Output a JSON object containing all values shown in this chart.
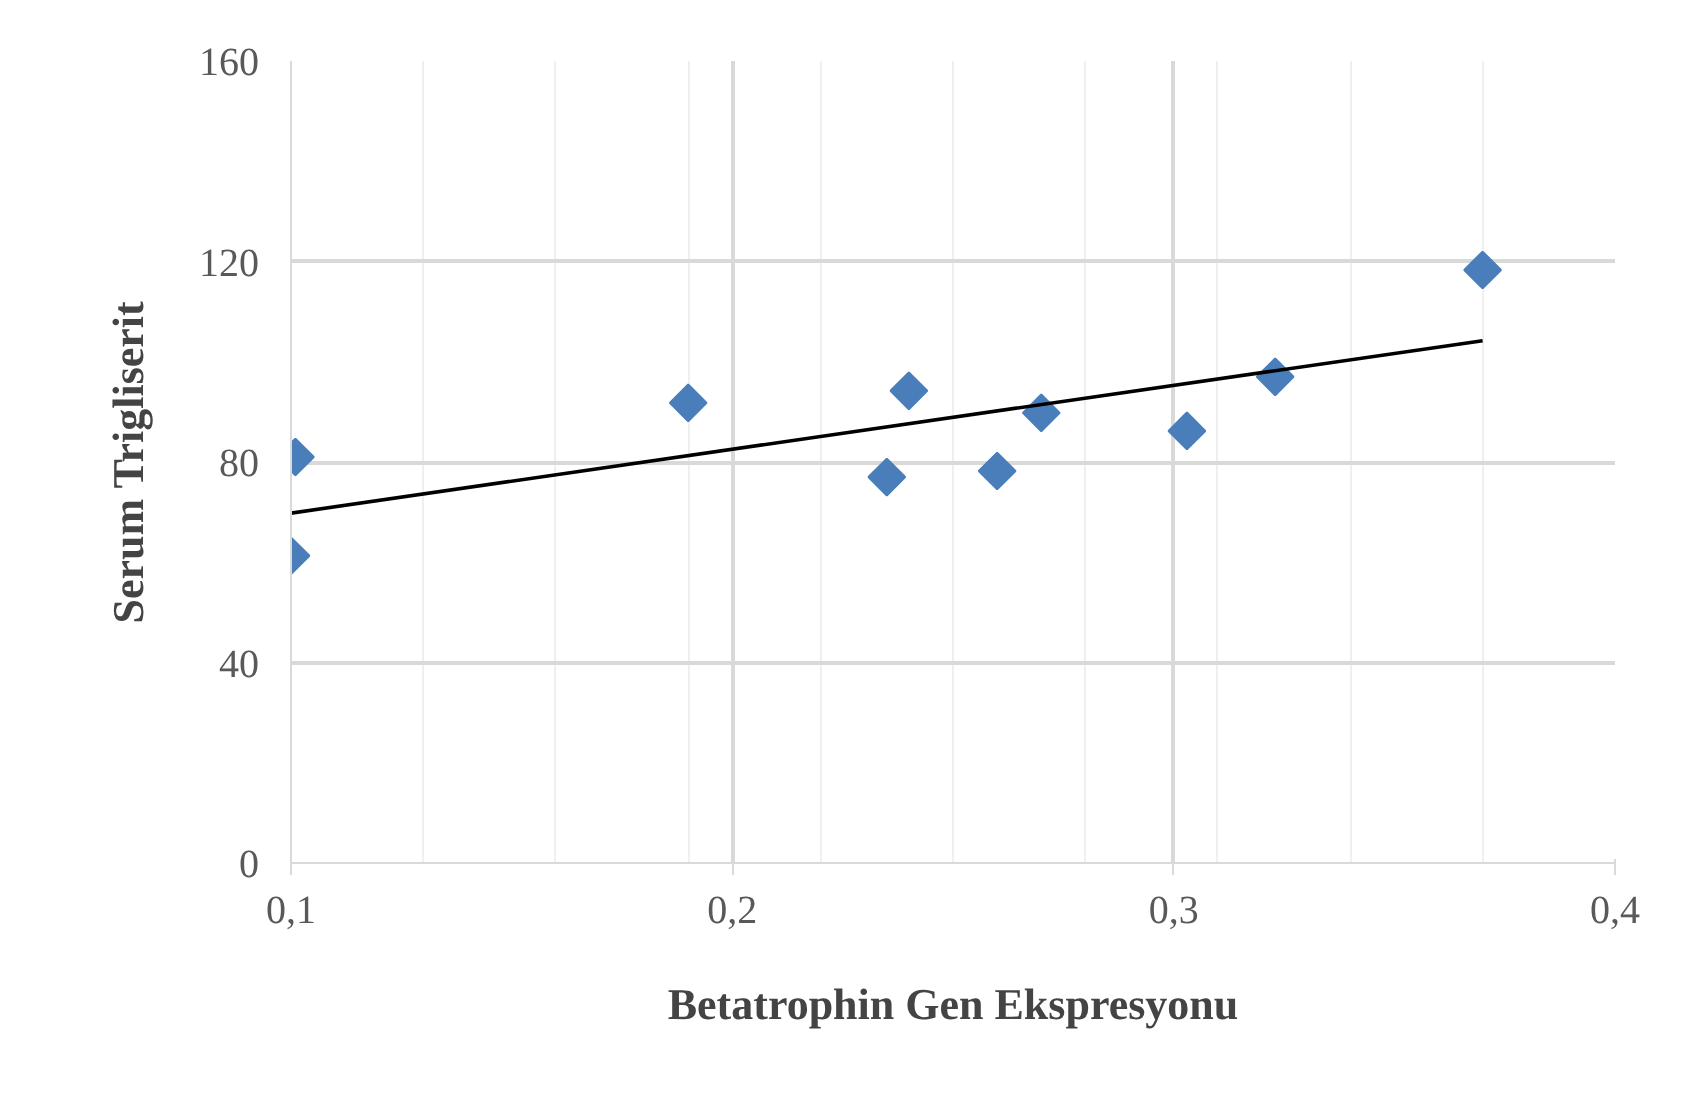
{
  "chart_data": {
    "type": "scatter",
    "xlabel": "Betatrophin Gen Ekspresyonu",
    "ylabel": "Serum Trigliserit",
    "grid": true,
    "xlim": [
      0.1,
      0.4
    ],
    "ylim": [
      0,
      160
    ],
    "xticks": [
      {
        "value": 0.1,
        "label": "0,1"
      },
      {
        "value": 0.13,
        "label": null
      },
      {
        "value": 0.16,
        "label": null
      },
      {
        "value": 0.19,
        "label": null
      },
      {
        "value": 0.2,
        "label": "0,2"
      },
      {
        "value": 0.22,
        "label": null
      },
      {
        "value": 0.25,
        "label": null
      },
      {
        "value": 0.28,
        "label": null
      },
      {
        "value": 0.3,
        "label": "0,3"
      },
      {
        "value": 0.31,
        "label": null
      },
      {
        "value": 0.34,
        "label": null
      },
      {
        "value": 0.37,
        "label": null
      },
      {
        "value": 0.4,
        "label": "0,4"
      }
    ],
    "yticks": [
      0,
      40,
      80,
      120,
      160
    ],
    "series": [
      {
        "marker": "diamond",
        "color": "#4a7ebb",
        "x": [
          0.1,
          0.101,
          0.19,
          0.235,
          0.24,
          0.26,
          0.27,
          0.303,
          0.323,
          0.37
        ],
        "values": [
          61.3,
          81,
          91.8,
          77,
          94.2,
          78.2,
          89.8,
          86.2,
          97,
          118.3
        ]
      },
      {
        "type": "line",
        "marker": "none",
        "color": "#000000",
        "x": [
          0.1,
          0.37
        ],
        "values": [
          69.8,
          104.2
        ]
      }
    ]
  }
}
